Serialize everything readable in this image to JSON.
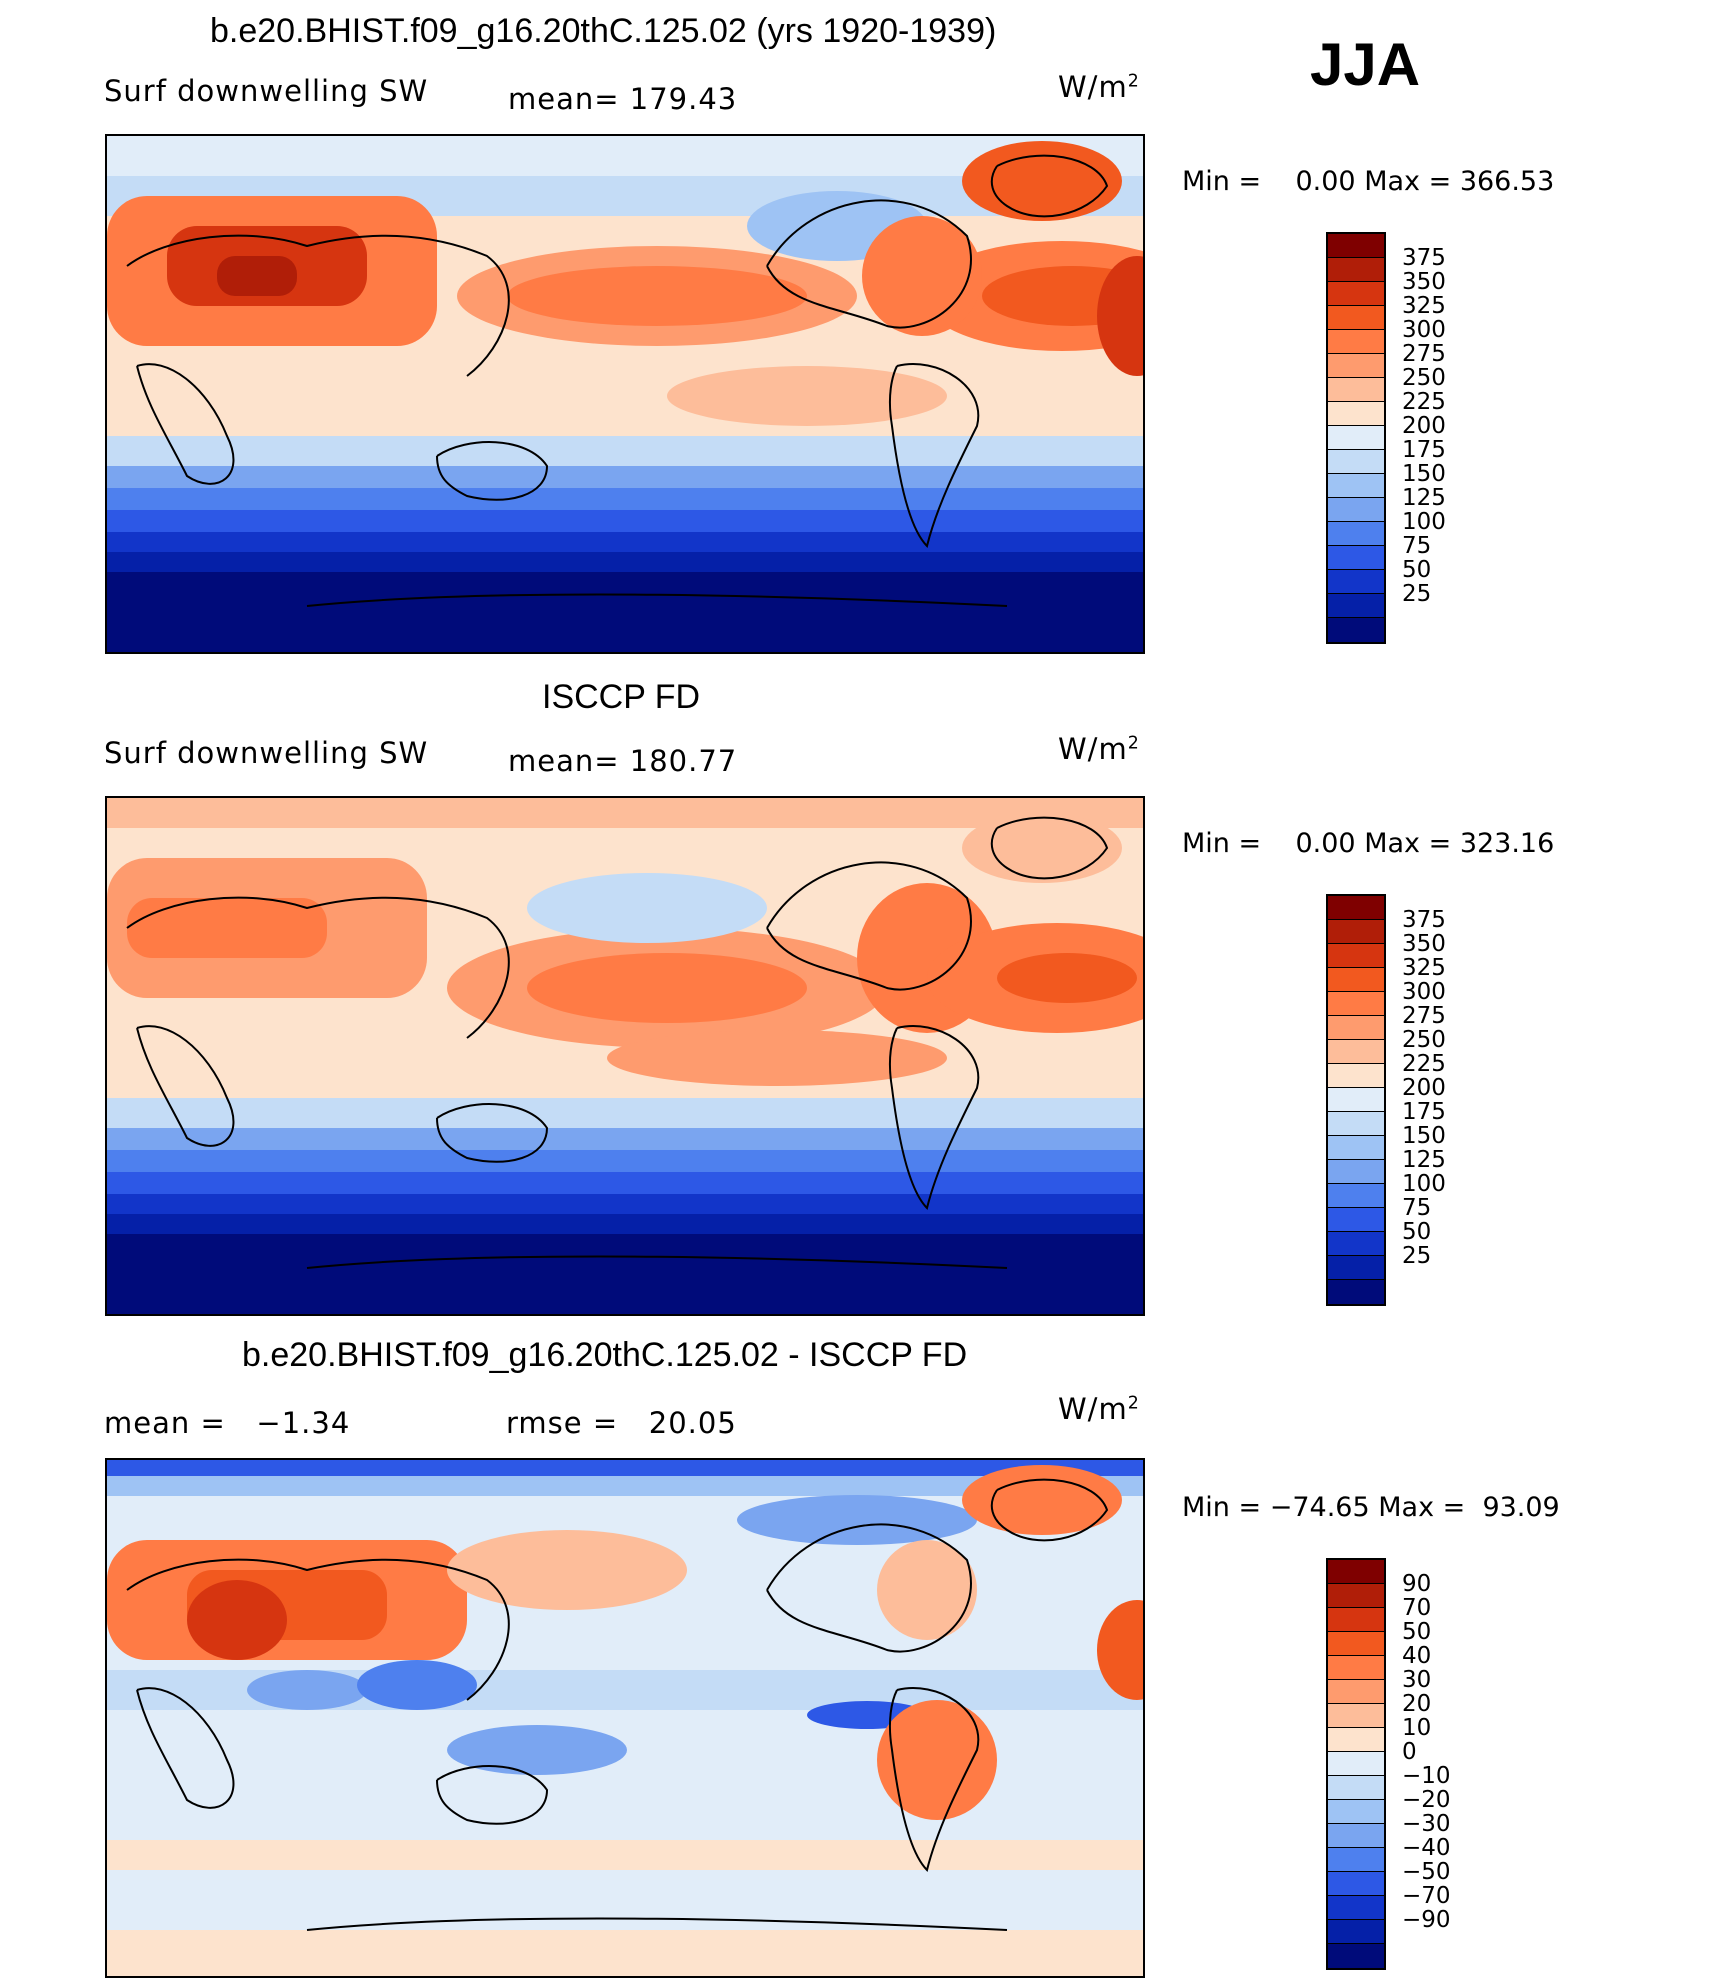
{
  "season": "JJA",
  "panels": [
    {
      "title": "b.e20.BHIST.f09_g16.20thC.125.02 (yrs 1920-1939)",
      "variable": "Surf downwelling SW",
      "stat_left": "",
      "stat_mid": "mean= 179.43",
      "units": "W/m",
      "units_exp": "2",
      "min_label": "Min =",
      "min_value": "0.00",
      "max_label": "Max =",
      "max_value": "366.53",
      "colorbar_labels": [
        "375",
        "350",
        "325",
        "300",
        "275",
        "250",
        "225",
        "200",
        "175",
        "150",
        "125",
        "100",
        "75",
        "50",
        "25"
      ],
      "colorbar_colors": [
        "#7f0000",
        "#b01e08",
        "#d63510",
        "#f2591f",
        "#ff7b45",
        "#fe9b6e",
        "#fdbd9a",
        "#fde3cd",
        "#e1edf9",
        "#c4dcf6",
        "#9ec3f4",
        "#7aa5f0",
        "#4e80ee",
        "#2d58e6",
        "#1235c9",
        "#0520a8",
        "#000b7a"
      ]
    },
    {
      "title": "ISCCP FD",
      "variable": "Surf downwelling SW",
      "stat_left": "",
      "stat_mid": "mean= 180.77",
      "units": "W/m",
      "units_exp": "2",
      "min_label": "Min =",
      "min_value": "0.00",
      "max_label": "Max =",
      "max_value": "323.16",
      "colorbar_labels": [
        "375",
        "350",
        "325",
        "300",
        "275",
        "250",
        "225",
        "200",
        "175",
        "150",
        "125",
        "100",
        "75",
        "50",
        "25"
      ],
      "colorbar_colors": [
        "#7f0000",
        "#b01e08",
        "#d63510",
        "#f2591f",
        "#ff7b45",
        "#fe9b6e",
        "#fdbd9a",
        "#fde3cd",
        "#e1edf9",
        "#c4dcf6",
        "#9ec3f4",
        "#7aa5f0",
        "#4e80ee",
        "#2d58e6",
        "#1235c9",
        "#0520a8",
        "#000b7a"
      ]
    },
    {
      "title": "b.e20.BHIST.f09_g16.20thC.125.02 - ISCCP FD",
      "variable": "",
      "stat_left": "mean =   −1.34",
      "stat_mid": "rmse =   20.05",
      "units": "W/m",
      "units_exp": "2",
      "min_label": "Min =",
      "min_value": "−74.65",
      "max_label": "Max =",
      "max_value": "93.09",
      "colorbar_labels": [
        "90",
        "70",
        "50",
        "40",
        "30",
        "20",
        "10",
        "0",
        "−10",
        "−20",
        "−30",
        "−40",
        "−50",
        "−70",
        "−90"
      ],
      "colorbar_colors": [
        "#7f0000",
        "#b01e08",
        "#d63510",
        "#f2591f",
        "#ff7b45",
        "#fe9b6e",
        "#fdbd9a",
        "#fde3cd",
        "#e1edf9",
        "#c4dcf6",
        "#9ec3f4",
        "#7aa5f0",
        "#4e80ee",
        "#2d58e6",
        "#1235c9",
        "#0520a8",
        "#000b7a"
      ]
    }
  ]
}
